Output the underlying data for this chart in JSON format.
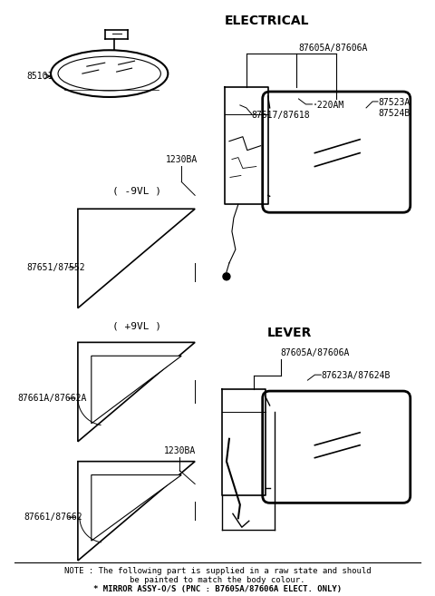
{
  "bg_color": "#ffffff",
  "title": "ELECTRICAL",
  "title2": "LEVER",
  "note_line1": "NOTE : The following part is supplied in a raw state and should",
  "note_line2": "be painted to match the body colour.",
  "note_line3": "* MIRROR ASSY-O/S (PNC : B7605A/87606A ELECT. ONLY)",
  "fs_small": 6.5,
  "fs_label": 7,
  "fs_title": 10
}
